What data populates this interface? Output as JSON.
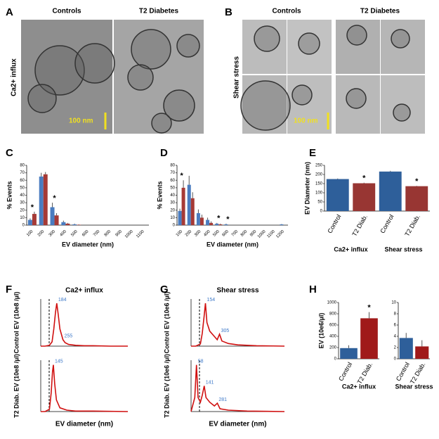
{
  "figure": {
    "labels": [
      "A",
      "B",
      "C",
      "D",
      "E",
      "F",
      "G",
      "H"
    ],
    "A": {
      "columns": [
        "Controls",
        "T2 Diabetes"
      ],
      "row": "Ca2+ influx",
      "scale": "100 nm"
    },
    "B": {
      "columns": [
        "Controls",
        "T2 Diabetes"
      ],
      "row": "Shear stress",
      "scale": "100 nm"
    }
  },
  "chart_data": [
    {
      "type": "bar",
      "ylabel": "% Events",
      "xlabel": "EV diameter (nm)",
      "categories": [
        "100",
        "200",
        "300",
        "400",
        "500",
        "600",
        "700",
        "800",
        "900",
        "1000",
        "1100"
      ],
      "series": [
        {
          "color": "#4a7cc0",
          "values": [
            7,
            65,
            24,
            4,
            1,
            0,
            0,
            0,
            0,
            0,
            0
          ],
          "errors": [
            2,
            5,
            6,
            2,
            1,
            0,
            0,
            0,
            0,
            0,
            0
          ]
        },
        {
          "color": "#a63a36",
          "values": [
            15,
            68,
            13,
            2,
            0.5,
            0,
            0,
            0,
            0,
            0,
            0
          ],
          "errors": [
            3,
            3,
            3,
            1,
            0.5,
            0,
            0,
            0,
            0,
            0,
            0
          ]
        }
      ],
      "significance": [
        "*",
        null,
        "*",
        null,
        null,
        null,
        null,
        null,
        null,
        null,
        null
      ],
      "ylim": [
        0,
        80
      ],
      "yticks": [
        0,
        10,
        20,
        30,
        40,
        50,
        60,
        70,
        80
      ]
    },
    {
      "type": "bar",
      "ylabel": "% Events",
      "xlabel": "EV diameter (nm)",
      "categories": [
        "100",
        "200",
        "300",
        "400",
        "500",
        "600",
        "700",
        "800",
        "900",
        "1000",
        "1100",
        "1200"
      ],
      "series": [
        {
          "color": "#4a7cc0",
          "values": [
            19,
            54,
            16,
            7,
            2,
            1,
            0,
            0,
            0,
            0,
            0,
            1
          ],
          "errors": [
            3,
            12,
            5,
            3,
            1,
            1,
            0,
            0,
            0,
            0,
            0,
            0.5
          ]
        },
        {
          "color": "#a63a36",
          "values": [
            50,
            36,
            10,
            3,
            1,
            0,
            0,
            0,
            0,
            0,
            0,
            0
          ],
          "errors": [
            10,
            8,
            4,
            2,
            1,
            0,
            0,
            0,
            0,
            0,
            0,
            0
          ]
        }
      ],
      "significance": [
        "*",
        null,
        null,
        null,
        "*",
        "*",
        null,
        null,
        null,
        null,
        null,
        null
      ],
      "ylim": [
        0,
        80
      ],
      "yticks": [
        0,
        10,
        20,
        30,
        40,
        50,
        60,
        70,
        80
      ]
    },
    {
      "type": "bar",
      "ylabel": "EV Diameter (nm)",
      "categories": [
        "Control",
        "T2 Diab.",
        "Control",
        "T2 Diab."
      ],
      "groups": [
        "Ca2+ influx",
        "Shear stress"
      ],
      "values": [
        175,
        152,
        216,
        136
      ],
      "errors": [
        3,
        3,
        4,
        2
      ],
      "colors": [
        "#2e5f9a",
        "#983633",
        "#2e5f9a",
        "#983633"
      ],
      "significance": [
        null,
        "*",
        null,
        "*"
      ],
      "ylim": [
        0,
        250
      ],
      "yticks": [
        0,
        50,
        100,
        150,
        200,
        250
      ]
    },
    {
      "type": "line",
      "title": "Ca2+ influx",
      "ylabel": "Control EV (10e8 /µl)",
      "color": "#d01010",
      "x": [
        0,
        50,
        100,
        130,
        150,
        170,
        184,
        200,
        220,
        255,
        280,
        320,
        400,
        500,
        600,
        800,
        1000
      ],
      "values": [
        0,
        0,
        0.02,
        0.1,
        0.4,
        0.8,
        1.0,
        0.75,
        0.4,
        0.15,
        0.08,
        0.04,
        0.02,
        0.01,
        0.01,
        0,
        0
      ],
      "peaks": [
        184,
        255
      ],
      "xlim": [
        0,
        1000
      ],
      "ylim": [
        0,
        1.1
      ]
    },
    {
      "type": "line",
      "ylabel": "T2 Diab. EV (10e8 /µl)",
      "xlabel": "EV diameter (nm)",
      "color": "#d01010",
      "x": [
        0,
        50,
        100,
        120,
        135,
        145,
        160,
        180,
        220,
        300,
        400,
        600,
        1000
      ],
      "values": [
        0,
        0,
        0.05,
        0.4,
        0.85,
        1.0,
        0.6,
        0.25,
        0.08,
        0.03,
        0.01,
        0.01,
        0
      ],
      "peaks": [
        145
      ],
      "xlim": [
        0,
        1000
      ],
      "ylim": [
        0,
        1.1
      ]
    },
    {
      "type": "line",
      "title": "Shear stress",
      "ylabel": "Control EV (10e6 /µl)",
      "color": "#d01010",
      "x": [
        0,
        50,
        100,
        120,
        140,
        154,
        170,
        200,
        240,
        280,
        305,
        330,
        400,
        500,
        700,
        1000
      ],
      "values": [
        0,
        0,
        0.05,
        0.3,
        0.7,
        1.0,
        0.55,
        0.35,
        0.25,
        0.15,
        0.28,
        0.12,
        0.06,
        0.03,
        0.01,
        0
      ],
      "peaks": [
        154,
        305
      ],
      "xlim": [
        0,
        1000
      ],
      "ylim": [
        0,
        1.1
      ]
    },
    {
      "type": "line",
      "ylabel": "T2 Diab. EV (10e6 /µl)",
      "xlabel": "EV diameter (nm)",
      "color": "#d01010",
      "x": [
        0,
        40,
        58,
        75,
        100,
        120,
        141,
        160,
        200,
        250,
        281,
        310,
        400,
        600,
        1000
      ],
      "values": [
        0,
        0.3,
        1.0,
        0.3,
        0.2,
        0.35,
        0.55,
        0.3,
        0.2,
        0.12,
        0.18,
        0.06,
        0.03,
        0.01,
        0
      ],
      "peaks": [
        58,
        141,
        281
      ],
      "xlim": [
        0,
        1000
      ],
      "ylim": [
        0,
        1.1
      ]
    },
    {
      "type": "bar",
      "ylabel": "EV  (10e6/µl)",
      "xlabel": "Ca2+ influx",
      "categories": [
        "Control",
        "T2 Diab."
      ],
      "values": [
        190,
        720
      ],
      "errors": [
        50,
        110
      ],
      "colors": [
        "#2e5f9a",
        "#a01a1a"
      ],
      "significance": [
        null,
        "*"
      ],
      "ylim": [
        0,
        1000
      ],
      "yticks": [
        0,
        200,
        400,
        600,
        800,
        1000
      ]
    },
    {
      "type": "bar",
      "xlabel": "Shear stress",
      "categories": [
        "Control",
        "T2 Diab."
      ],
      "values": [
        3.7,
        2.2
      ],
      "errors": [
        0.9,
        1.1
      ],
      "colors": [
        "#2e5f9a",
        "#a01a1a"
      ],
      "ylim": [
        0,
        10
      ],
      "yticks": [
        0,
        2,
        4,
        6,
        8,
        10
      ]
    }
  ]
}
